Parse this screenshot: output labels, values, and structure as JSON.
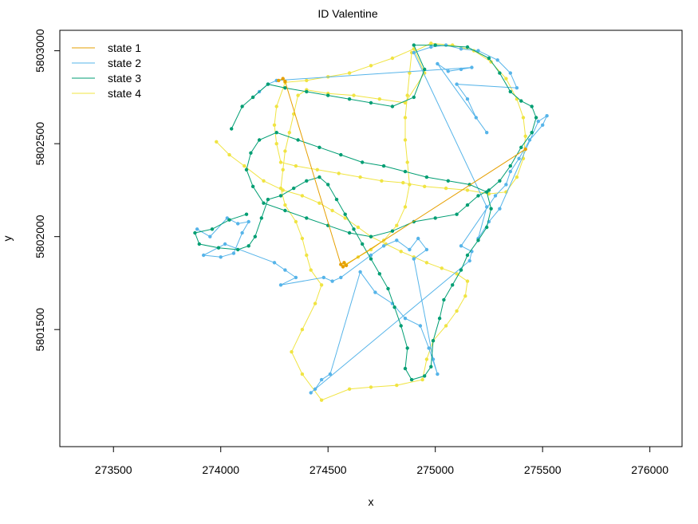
{
  "chart_data": {
    "type": "line",
    "title": "ID Valentine",
    "xlabel": "x",
    "ylabel": "y",
    "xlim": [
      273250,
      276150
    ],
    "ylim": [
      5800870,
      5803110
    ],
    "x_ticks": [
      "273500",
      "274000",
      "274500",
      "275000",
      "275500",
      "276000"
    ],
    "x_tick_values": [
      273500,
      274000,
      274500,
      275000,
      275500,
      276000
    ],
    "y_ticks": [
      "5801500",
      "5802000",
      "5802500",
      "5803000"
    ],
    "y_tick_values": [
      5801500,
      5802000,
      5802500,
      5803000
    ],
    "grid": false,
    "legend_position": "top-left",
    "series": [
      {
        "name": "state 1",
        "color": "#E69F00",
        "points": [
          [
            274270,
            5802840
          ],
          [
            274290,
            5802850
          ],
          [
            274300,
            5802835
          ],
          [
            274560,
            5801850
          ],
          [
            274575,
            5801860
          ],
          [
            274585,
            5801845
          ],
          [
            274570,
            5801838
          ],
          [
            275420,
            5802470
          ]
        ]
      },
      {
        "name": "state 2",
        "color": "#56B4E9",
        "points": [
          [
            273890,
            5802040
          ],
          [
            273950,
            5802000
          ],
          [
            274030,
            5802100
          ],
          [
            274080,
            5802070
          ],
          [
            274130,
            5802080
          ],
          [
            274100,
            5802020
          ],
          [
            274060,
            5801910
          ],
          [
            274000,
            5801890
          ],
          [
            273920,
            5801900
          ],
          [
            274020,
            5801960
          ],
          [
            274250,
            5801860
          ],
          [
            274300,
            5801820
          ],
          [
            274350,
            5801780
          ],
          [
            274280,
            5801740
          ],
          [
            274480,
            5801780
          ],
          [
            274520,
            5801760
          ],
          [
            274560,
            5801780
          ],
          [
            274700,
            5801900
          ],
          [
            274760,
            5801950
          ],
          [
            274820,
            5801980
          ],
          [
            274880,
            5801930
          ],
          [
            274920,
            5801990
          ],
          [
            274960,
            5801930
          ],
          [
            274900,
            5801880
          ],
          [
            274990,
            5801340
          ],
          [
            275010,
            5801260
          ],
          [
            274970,
            5801400
          ],
          [
            274930,
            5801520
          ],
          [
            274860,
            5801560
          ],
          [
            274800,
            5801640
          ],
          [
            274720,
            5801700
          ],
          [
            274650,
            5801810
          ],
          [
            274510,
            5801260
          ],
          [
            274470,
            5801230
          ],
          [
            274440,
            5801180
          ],
          [
            274420,
            5801160
          ],
          [
            275160,
            5801870
          ],
          [
            275170,
            5801920
          ],
          [
            275120,
            5801950
          ],
          [
            275280,
            5802220
          ],
          [
            275330,
            5802280
          ],
          [
            275350,
            5802350
          ],
          [
            275390,
            5802420
          ],
          [
            275440,
            5802520
          ],
          [
            275500,
            5802600
          ],
          [
            275520,
            5802650
          ],
          [
            275480,
            5802620
          ],
          [
            275300,
            5802150
          ],
          [
            275250,
            5802080
          ],
          [
            275200,
            5801990
          ],
          [
            275240,
            5802160
          ],
          [
            274900,
            5802990
          ],
          [
            274980,
            5803020
          ],
          [
            275050,
            5803030
          ],
          [
            275120,
            5803010
          ],
          [
            275200,
            5803000
          ],
          [
            275290,
            5802950
          ],
          [
            275350,
            5802880
          ],
          [
            275380,
            5802800
          ],
          [
            275100,
            5802820
          ],
          [
            275150,
            5802740
          ],
          [
            275190,
            5802640
          ],
          [
            275240,
            5802560
          ],
          [
            275010,
            5802930
          ],
          [
            275060,
            5802890
          ],
          [
            275120,
            5802900
          ],
          [
            275170,
            5802910
          ],
          [
            274260,
            5802840
          ],
          [
            274220,
            5802820
          ],
          [
            274180,
            5802780
          ],
          [
            274150,
            5802750
          ]
        ]
      },
      {
        "name": "state 3",
        "color": "#009E73",
        "points": [
          [
            274050,
            5802580
          ],
          [
            274100,
            5802700
          ],
          [
            274150,
            5802750
          ],
          [
            274220,
            5802820
          ],
          [
            274300,
            5802800
          ],
          [
            274400,
            5802780
          ],
          [
            274500,
            5802760
          ],
          [
            274600,
            5802740
          ],
          [
            274700,
            5802720
          ],
          [
            274800,
            5802700
          ],
          [
            274900,
            5802750
          ],
          [
            274950,
            5802900
          ],
          [
            274900,
            5803030
          ],
          [
            275000,
            5803030
          ],
          [
            275150,
            5803020
          ],
          [
            275250,
            5802960
          ],
          [
            275300,
            5802880
          ],
          [
            275350,
            5802780
          ],
          [
            275400,
            5802730
          ],
          [
            275450,
            5802700
          ],
          [
            275470,
            5802640
          ],
          [
            275450,
            5802560
          ],
          [
            275400,
            5802480
          ],
          [
            275350,
            5802380
          ],
          [
            275300,
            5802300
          ],
          [
            275250,
            5802250
          ],
          [
            275200,
            5802220
          ],
          [
            275150,
            5802170
          ],
          [
            275100,
            5802120
          ],
          [
            275000,
            5802100
          ],
          [
            274900,
            5802080
          ],
          [
            274800,
            5802030
          ],
          [
            274700,
            5802000
          ],
          [
            274600,
            5802020
          ],
          [
            274500,
            5802060
          ],
          [
            274400,
            5802100
          ],
          [
            274300,
            5802140
          ],
          [
            274200,
            5802180
          ],
          [
            274150,
            5802270
          ],
          [
            274120,
            5802360
          ],
          [
            274140,
            5802450
          ],
          [
            274180,
            5802520
          ],
          [
            274260,
            5802560
          ],
          [
            274360,
            5802520
          ],
          [
            274460,
            5802480
          ],
          [
            274560,
            5802440
          ],
          [
            274660,
            5802400
          ],
          [
            274760,
            5802380
          ],
          [
            274860,
            5802350
          ],
          [
            274960,
            5802320
          ],
          [
            275060,
            5802300
          ],
          [
            275160,
            5802280
          ],
          [
            275240,
            5802240
          ],
          [
            275260,
            5802150
          ],
          [
            275240,
            5802050
          ],
          [
            275200,
            5801980
          ],
          [
            275150,
            5801900
          ],
          [
            275120,
            5801820
          ],
          [
            275080,
            5801740
          ],
          [
            275040,
            5801660
          ],
          [
            275020,
            5801560
          ],
          [
            274990,
            5801440
          ],
          [
            274980,
            5801300
          ],
          [
            274950,
            5801250
          ],
          [
            274890,
            5801230
          ],
          [
            274860,
            5801290
          ],
          [
            274870,
            5801400
          ],
          [
            274840,
            5801520
          ],
          [
            274810,
            5801620
          ],
          [
            274780,
            5801720
          ],
          [
            274740,
            5801800
          ],
          [
            274700,
            5801880
          ],
          [
            274660,
            5801960
          ],
          [
            274620,
            5802040
          ],
          [
            274580,
            5802120
          ],
          [
            274540,
            5802200
          ],
          [
            274500,
            5802280
          ],
          [
            274460,
            5802320
          ],
          [
            274400,
            5802300
          ],
          [
            274340,
            5802260
          ],
          [
            274280,
            5802220
          ],
          [
            274220,
            5802200
          ],
          [
            274190,
            5802100
          ],
          [
            274160,
            5802000
          ],
          [
            274130,
            5801950
          ],
          [
            274080,
            5801930
          ],
          [
            273990,
            5801940
          ],
          [
            273900,
            5801960
          ],
          [
            273880,
            5802020
          ],
          [
            273960,
            5802040
          ],
          [
            274040,
            5802090
          ],
          [
            274120,
            5802120
          ]
        ]
      },
      {
        "name": "state 4",
        "color": "#F0E442",
        "points": [
          [
            273980,
            5802510
          ],
          [
            274040,
            5802440
          ],
          [
            274110,
            5802380
          ],
          [
            274200,
            5802300
          ],
          [
            274290,
            5802250
          ],
          [
            274380,
            5802220
          ],
          [
            274460,
            5802180
          ],
          [
            274520,
            5802140
          ],
          [
            274580,
            5802100
          ],
          [
            274640,
            5802050
          ],
          [
            274700,
            5802000
          ],
          [
            274770,
            5801960
          ],
          [
            274840,
            5801920
          ],
          [
            274900,
            5801890
          ],
          [
            274960,
            5801860
          ],
          [
            275030,
            5801830
          ],
          [
            275100,
            5801800
          ],
          [
            275150,
            5801760
          ],
          [
            275140,
            5801680
          ],
          [
            275100,
            5801600
          ],
          [
            275050,
            5801520
          ],
          [
            274990,
            5801440
          ],
          [
            274960,
            5801340
          ],
          [
            274940,
            5801230
          ],
          [
            274820,
            5801200
          ],
          [
            274700,
            5801190
          ],
          [
            274600,
            5801180
          ],
          [
            274470,
            5801120
          ],
          [
            274380,
            5801260
          ],
          [
            274330,
            5801380
          ],
          [
            274380,
            5801500
          ],
          [
            274440,
            5801640
          ],
          [
            274470,
            5801740
          ],
          [
            274420,
            5801820
          ],
          [
            274400,
            5801900
          ],
          [
            274380,
            5801990
          ],
          [
            274350,
            5802080
          ],
          [
            274300,
            5802170
          ],
          [
            274280,
            5802260
          ],
          [
            274290,
            5802360
          ],
          [
            274300,
            5802460
          ],
          [
            274320,
            5802560
          ],
          [
            274340,
            5802660
          ],
          [
            274360,
            5802760
          ],
          [
            274400,
            5802790
          ],
          [
            274500,
            5802770
          ],
          [
            274620,
            5802760
          ],
          [
            274740,
            5802740
          ],
          [
            274860,
            5802720
          ],
          [
            274950,
            5802880
          ],
          [
            274900,
            5803010
          ],
          [
            274800,
            5802960
          ],
          [
            274700,
            5802920
          ],
          [
            274600,
            5802880
          ],
          [
            274500,
            5802860
          ],
          [
            274400,
            5802840
          ],
          [
            274300,
            5802830
          ],
          [
            274260,
            5802700
          ],
          [
            274250,
            5802600
          ],
          [
            274260,
            5802500
          ],
          [
            274280,
            5802400
          ],
          [
            274350,
            5802380
          ],
          [
            274450,
            5802360
          ],
          [
            274550,
            5802340
          ],
          [
            274650,
            5802320
          ],
          [
            274750,
            5802300
          ],
          [
            274850,
            5802290
          ],
          [
            274950,
            5802270
          ],
          [
            275050,
            5802260
          ],
          [
            275150,
            5802250
          ],
          [
            275250,
            5802230
          ],
          [
            275330,
            5802240
          ],
          [
            275380,
            5802320
          ],
          [
            275410,
            5802420
          ],
          [
            275420,
            5802540
          ],
          [
            275410,
            5802640
          ],
          [
            275380,
            5802740
          ],
          [
            275330,
            5802850
          ],
          [
            275260,
            5802940
          ],
          [
            275180,
            5803000
          ],
          [
            275080,
            5803030
          ],
          [
            274980,
            5803040
          ],
          [
            274890,
            5802990
          ],
          [
            274880,
            5802880
          ],
          [
            274870,
            5802760
          ],
          [
            274860,
            5802640
          ],
          [
            274860,
            5802520
          ],
          [
            274870,
            5802400
          ],
          [
            274880,
            5802280
          ],
          [
            274860,
            5802160
          ],
          [
            274820,
            5802060
          ],
          [
            274760,
            5801980
          ],
          [
            274700,
            5801930
          ],
          [
            274640,
            5801890
          ],
          [
            274580,
            5801850
          ]
        ]
      }
    ]
  }
}
